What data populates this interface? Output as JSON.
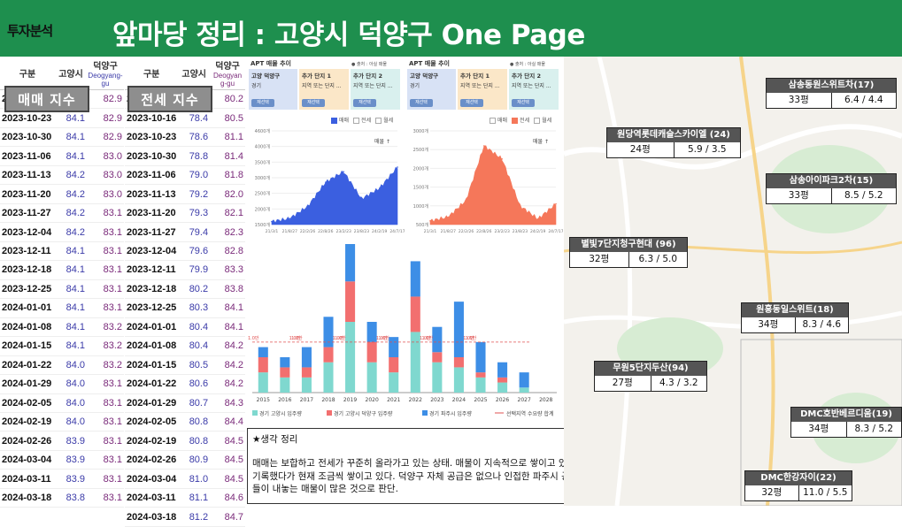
{
  "header": {
    "tag": "투자분석",
    "title": "앞마당 정리 : 고양시 덕양구 One Page"
  },
  "sale_table": {
    "headers": [
      "구분",
      "고양시",
      "덕양구"
    ],
    "subheaders": [
      "",
      "Goyang",
      "Deogyang-gu"
    ],
    "overlay": "매매 지수",
    "rows": [
      [
        "2023-10-16",
        "84.0",
        "82.9"
      ],
      [
        "2023-10-23",
        "84.1",
        "82.9"
      ],
      [
        "2023-10-30",
        "84.1",
        "82.9"
      ],
      [
        "2023-11-06",
        "84.1",
        "83.0"
      ],
      [
        "2023-11-13",
        "84.2",
        "83.0"
      ],
      [
        "2023-11-20",
        "84.2",
        "83.0"
      ],
      [
        "2023-11-27",
        "84.2",
        "83.1"
      ],
      [
        "2023-12-04",
        "84.2",
        "83.1"
      ],
      [
        "2023-12-11",
        "84.1",
        "83.1"
      ],
      [
        "2023-12-18",
        "84.1",
        "83.1"
      ],
      [
        "2023-12-25",
        "84.1",
        "83.1"
      ],
      [
        "2024-01-01",
        "84.1",
        "83.1"
      ],
      [
        "2024-01-08",
        "84.1",
        "83.2"
      ],
      [
        "2024-01-15",
        "84.1",
        "83.2"
      ],
      [
        "2024-01-22",
        "84.0",
        "83.2"
      ],
      [
        "2024-01-29",
        "84.0",
        "83.1"
      ],
      [
        "2024-02-05",
        "84.0",
        "83.1"
      ],
      [
        "2024-02-19",
        "84.0",
        "83.1"
      ],
      [
        "2024-02-26",
        "83.9",
        "83.1"
      ],
      [
        "2024-03-04",
        "83.9",
        "83.1"
      ],
      [
        "2024-03-11",
        "83.9",
        "83.1"
      ],
      [
        "2024-03-18",
        "83.8",
        "83.1"
      ]
    ]
  },
  "rent_table": {
    "headers": [
      "구분",
      "고양시",
      "덕양구"
    ],
    "subheaders": [
      "",
      "",
      "Deogyan g-gu"
    ],
    "overlay": "전세 지수",
    "rows": [
      [
        "2023-10-09",
        "78.2",
        "80.2"
      ],
      [
        "2023-10-16",
        "78.4",
        "80.5"
      ],
      [
        "2023-10-23",
        "78.6",
        "81.1"
      ],
      [
        "2023-10-30",
        "78.8",
        "81.4"
      ],
      [
        "2023-11-06",
        "79.0",
        "81.8"
      ],
      [
        "2023-11-13",
        "79.2",
        "82.0"
      ],
      [
        "2023-11-20",
        "79.3",
        "82.1"
      ],
      [
        "2023-11-27",
        "79.4",
        "82.3"
      ],
      [
        "2023-12-04",
        "79.6",
        "82.8"
      ],
      [
        "2023-12-11",
        "79.9",
        "83.3"
      ],
      [
        "2023-12-18",
        "80.2",
        "83.8"
      ],
      [
        "2023-12-25",
        "80.3",
        "84.1"
      ],
      [
        "2024-01-01",
        "80.4",
        "84.1"
      ],
      [
        "2024-01-08",
        "80.4",
        "84.2"
      ],
      [
        "2024-01-15",
        "80.5",
        "84.2"
      ],
      [
        "2024-01-22",
        "80.6",
        "84.2"
      ],
      [
        "2024-01-29",
        "80.7",
        "84.3"
      ],
      [
        "2024-02-05",
        "80.8",
        "84.4"
      ],
      [
        "2024-02-19",
        "80.8",
        "84.5"
      ],
      [
        "2024-02-26",
        "80.9",
        "84.5"
      ],
      [
        "2024-03-04",
        "81.0",
        "84.5"
      ],
      [
        "2024-03-11",
        "81.1",
        "84.6"
      ],
      [
        "2024-03-18",
        "81.2",
        "84.7"
      ]
    ]
  },
  "panel_sale": {
    "title": "APT 매물 추이",
    "source": "● 출처 : 아실 매물",
    "cards": [
      {
        "name": "고양 덕양구",
        "sub": "경기",
        "btn": "재선택",
        "color": "#d8e2f5"
      },
      {
        "name": "추가 단지 1",
        "sub": "지역 또는 단지 ...",
        "btn": "재선택",
        "color": "#fbe7c8"
      },
      {
        "name": "추가 단지 2",
        "sub": "지역 또는 단지 ...",
        "btn": "재선택",
        "color": "#d9f0ee"
      }
    ],
    "legend": [
      "매매",
      "전세",
      "월세"
    ],
    "yticks": [
      "4600개",
      "4000개",
      "3500개",
      "3000개",
      "2500개",
      "2000개",
      "1500개"
    ],
    "xticks": [
      "21/3/1",
      "21/8/27",
      "22/2/26",
      "22/8/26",
      "23/2/23",
      "23/8/23",
      "24/2/19",
      "24/7/17"
    ],
    "annot": "매물 ↑"
  },
  "panel_rent": {
    "title": "APT 매물 추이",
    "source": "● 출처 : 아실 매물",
    "cards": [
      {
        "name": "고양 덕양구",
        "sub": "경기",
        "btn": "재선택",
        "color": "#d8e2f5"
      },
      {
        "name": "추가 단지 1",
        "sub": "지역 또는 단지 ...",
        "btn": "재선택",
        "color": "#fbe7c8"
      },
      {
        "name": "추가 단지 2",
        "sub": "지역 또는 단지 ...",
        "btn": "재선택",
        "color": "#d9f0ee"
      }
    ],
    "legend": [
      "매매",
      "전세",
      "월세"
    ],
    "yticks": [
      "3000개",
      "2500개",
      "2000개",
      "1500개",
      "1000개",
      "500개"
    ],
    "xticks": [
      "21/3/1",
      "21/8/27",
      "22/2/26",
      "22/8/26",
      "23/2/23",
      "23/8/23",
      "24/2/19",
      "24/7/17"
    ],
    "annot": "매물 ↑"
  },
  "chart_data": [
    {
      "type": "area",
      "title": "APT 매물 추이",
      "series": [
        {
          "name": "매매",
          "color": "#3b5fe0"
        }
      ],
      "x": [
        "21/3/1",
        "21/8/27",
        "22/2/26",
        "22/8/26",
        "23/2/23",
        "23/8/23",
        "24/2/19",
        "24/7/17"
      ],
      "values": [
        1600,
        1700,
        2100,
        2900,
        3250,
        2350,
        2700,
        3400
      ],
      "ylim": [
        1500,
        4600
      ]
    },
    {
      "type": "area",
      "title": "APT 매물 추이",
      "series": [
        {
          "name": "전세",
          "color": "#f5775a"
        }
      ],
      "x": [
        "21/3/1",
        "21/8/27",
        "22/2/26",
        "22/8/26",
        "23/2/23",
        "23/8/23",
        "24/2/19",
        "24/7/17"
      ],
      "values": [
        600,
        700,
        1150,
        2600,
        2250,
        1000,
        650,
        1050
      ],
      "ylim": [
        500,
        3000
      ]
    },
    {
      "type": "bar",
      "categories": [
        "2015",
        "2016",
        "2017",
        "2018",
        "2019",
        "2020",
        "2021",
        "2022",
        "2023",
        "2024",
        "2025",
        "2026",
        "2027",
        "2028"
      ],
      "series": [
        {
          "name": "경기 고양시 입주량",
          "color": "#7fd8cf",
          "values": [
            0.4,
            0.3,
            0.3,
            0.6,
            1.4,
            0.6,
            0.4,
            1.2,
            0.6,
            0.5,
            0.3,
            0.2,
            0.1,
            0
          ]
        },
        {
          "name": "경기 고양시 덕양구 입주량",
          "color": "#f26f6f",
          "values": [
            0.3,
            0.2,
            0.2,
            0.3,
            0.8,
            0.4,
            0.3,
            0.7,
            0.2,
            0.2,
            0.1,
            0.1,
            0.0,
            0
          ]
        },
        {
          "name": "경기 파주시 입주량",
          "color": "#3d8ee6",
          "values": [
            0.2,
            0.2,
            0.4,
            0.6,
            0.9,
            0.4,
            0.4,
            0.7,
            0.5,
            1.1,
            0.6,
            0.3,
            0.3,
            0
          ]
        }
      ],
      "line": {
        "name": "선택지역 수요량 합계",
        "value": 1.0
      },
      "data_labels": [
        "1.0만",
        "1.0만",
        "1.0만",
        "1.0만",
        "1.0만",
        "1.0만",
        "1.0만",
        "1.0만",
        "1.0만",
        "1.0만",
        "1.0만"
      ],
      "ylim": [
        0,
        2.8
      ]
    }
  ],
  "notes": {
    "heading": "★생각 정리",
    "body": "매매는 보합하고 전세가 꾸준히 올라가고 있는 상태. 매물이 지속적으로 쌓이고 있고, 전세는 23년 하반기 가장 적은 숫자를 기록했다가 현재 조금씩 쌓이고 있다. 덕양구 자체 공급은 없으나 인접한 파주시 공급이 워낙 많아 이 지역으로 이동하는 사람들이 내놓는 매물이 많은 것으로 판단."
  },
  "map_labels": [
    {
      "name": "삼송동원스위트차(17)",
      "size": "33평",
      "price": "6.4 / 4.4"
    },
    {
      "name": "원당역롯데캐슬스카이엘 (24)",
      "size": "24평",
      "price": "5.9 / 3.5"
    },
    {
      "name": "삼송아이파크2차(15)",
      "size": "33평",
      "price": "8.5 / 5.2"
    },
    {
      "name": "별빛7단지청구현대 (96)",
      "size": "32평",
      "price": "6.3 / 5.0"
    },
    {
      "name": "원흥동일스위트(18)",
      "size": "34평",
      "price": "8.3 / 4.6"
    },
    {
      "name": "무원5단지두산(94)",
      "size": "27평",
      "price": "4.3 / 3.2"
    },
    {
      "name": "DMC호반베르디움(19)",
      "size": "34평",
      "price": "8.3 / 5.2"
    },
    {
      "name": "DMC한강자이(22)",
      "size": "32평",
      "price": "11.0 / 5.5"
    }
  ]
}
